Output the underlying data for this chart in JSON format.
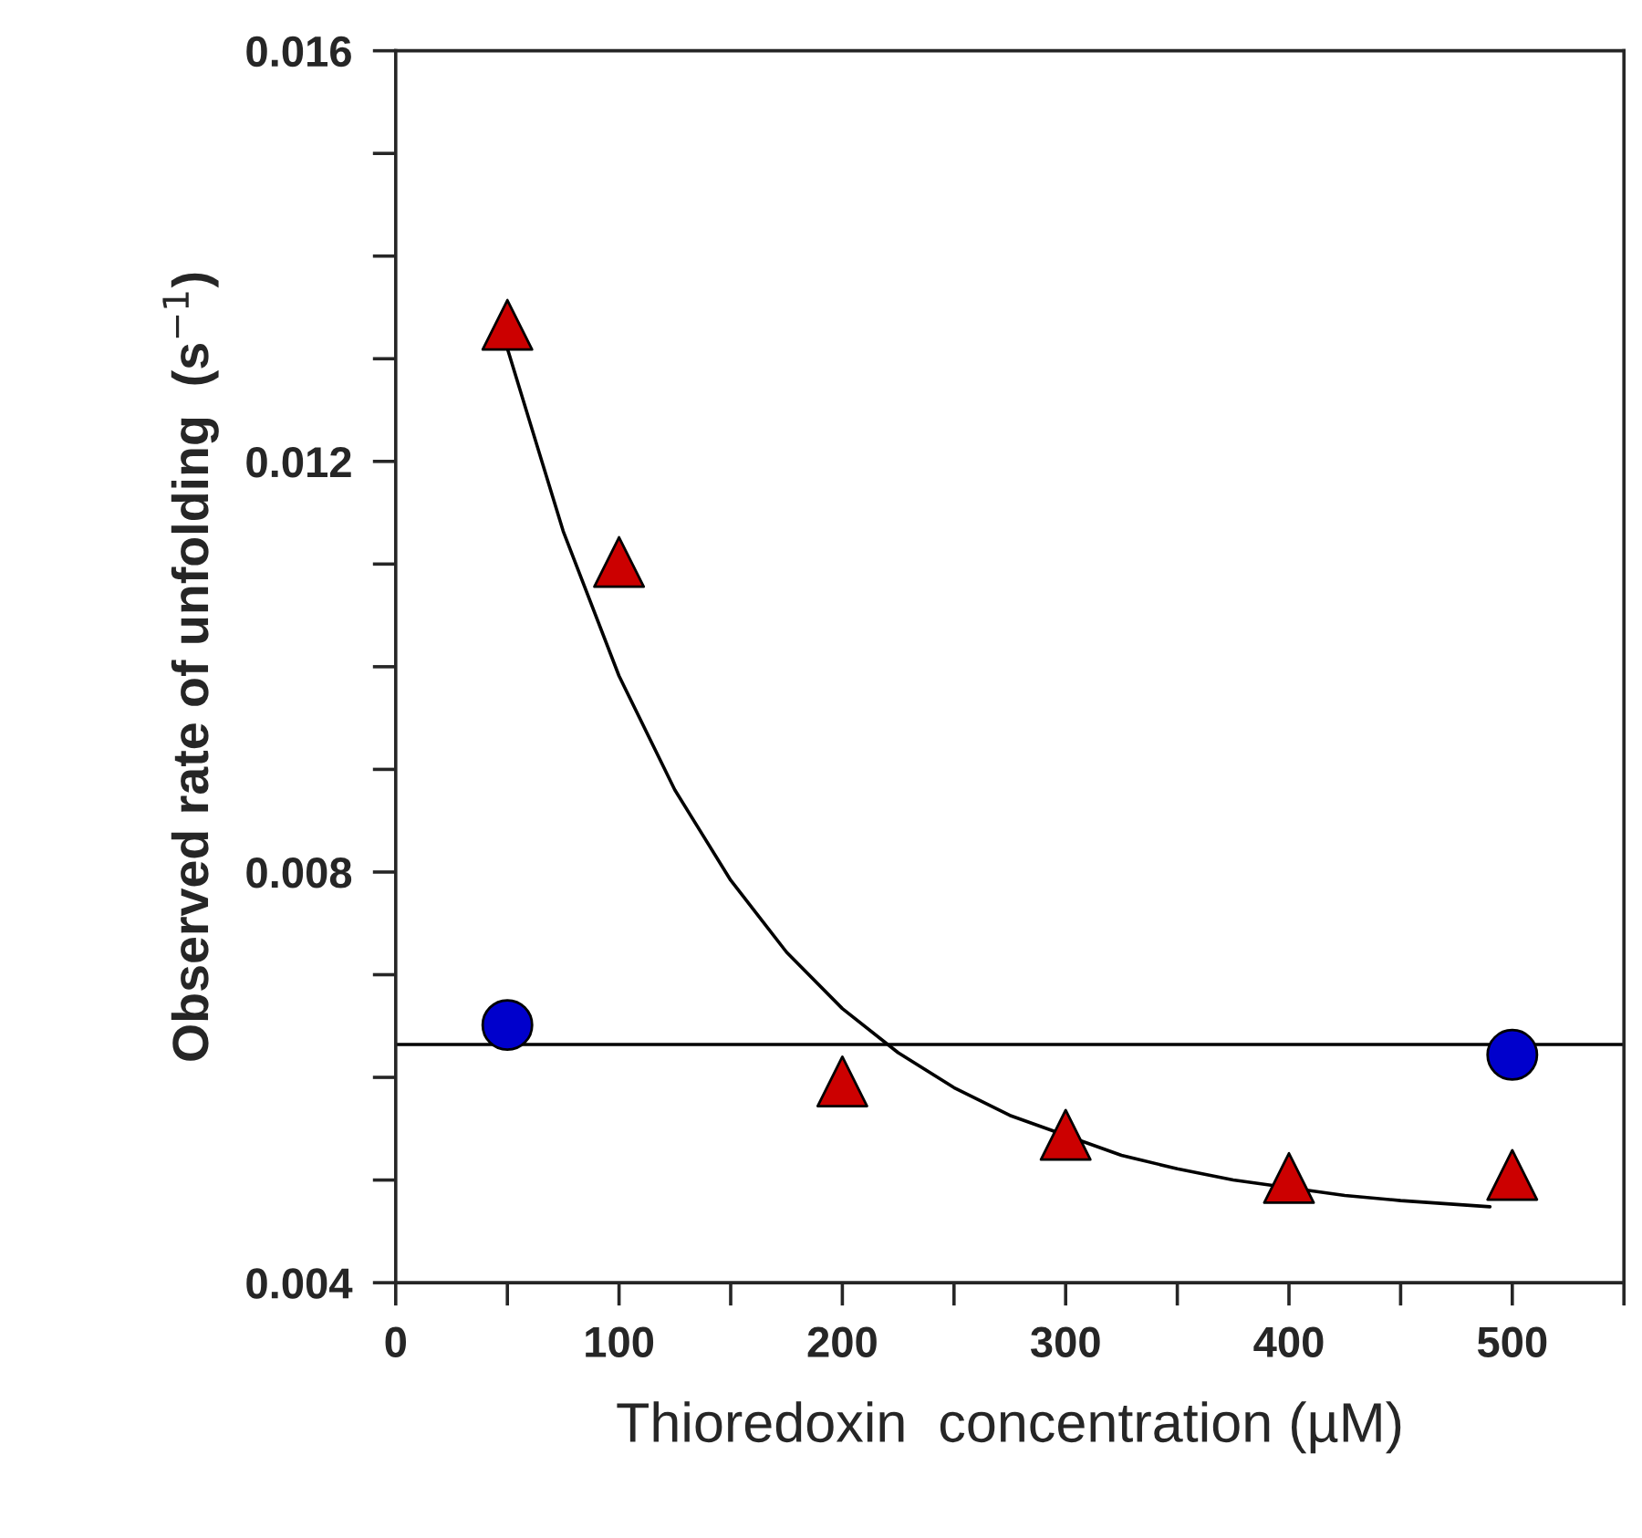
{
  "chart_data": {
    "type": "scatter",
    "xlabel": "Thioredoxin  concentration (µM)",
    "ylabel": "Observed rate of unfolding  (s$^{−1}$)",
    "xlim": [
      0,
      550
    ],
    "ylim": [
      0.004,
      0.016
    ],
    "xticks": [
      0,
      {
        "value": 50,
        "label": null
      },
      100,
      {
        "value": 150,
        "label": null
      },
      200,
      {
        "value": 250,
        "label": null
      },
      300,
      {
        "value": 350,
        "label": null
      },
      400,
      {
        "value": 450,
        "label": null
      },
      500,
      {
        "value": 550,
        "label": null
      }
    ],
    "yticks": [
      0.004,
      {
        "value": 0.005,
        "label": null
      },
      {
        "value": 0.006,
        "label": null
      },
      {
        "value": 0.007,
        "label": null
      },
      0.008,
      {
        "value": 0.009,
        "label": null
      },
      {
        "value": 0.01,
        "label": null
      },
      {
        "value": 0.011,
        "label": null
      },
      0.012,
      {
        "value": 0.013,
        "label": null
      },
      {
        "value": 0.014,
        "label": null
      },
      {
        "value": 0.015,
        "label": null
      },
      0.016
    ],
    "grid": false,
    "legend": false,
    "ref_lines": [
      {
        "axis": "y",
        "value": 0.00632,
        "color": "#000000",
        "line_style": "solid"
      }
    ],
    "series": [
      {
        "type": "line",
        "color": "#000000",
        "marker": "none",
        "line_style": "solid",
        "x": [
          50,
          75,
          100,
          125,
          150,
          175,
          200,
          225,
          250,
          275,
          325,
          350,
          375,
          425,
          450,
          490
        ],
        "values": [
          0.0131,
          0.01132,
          0.00991,
          0.0088,
          0.00792,
          0.00722,
          0.00667,
          0.00624,
          0.0059,
          0.00563,
          0.00524,
          0.00511,
          0.005,
          0.00485,
          0.0048,
          0.00474
        ]
      },
      {
        "color": "#0000cc",
        "marker": "circle",
        "x": [
          50,
          500
        ],
        "values": [
          0.00651,
          0.00622
        ]
      },
      {
        "color": "#cc0000",
        "marker": "triangle",
        "x": [
          50,
          100,
          200,
          300,
          400,
          500
        ],
        "values": [
          0.01333,
          0.01102,
          0.00596,
          0.00544,
          0.00502,
          0.00505
        ]
      }
    ]
  }
}
